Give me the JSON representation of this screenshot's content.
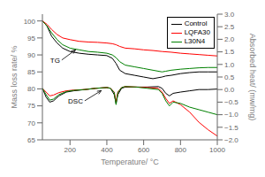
{
  "chart_data": {
    "type": "line",
    "title": "",
    "xlabel": "Temperature/ °C",
    "ylabel": "Mass loss rate/ %",
    "y2label": "Absorbed heat/ (mw/mg)",
    "xlim": [
      50,
      1000
    ],
    "xticks": [
      200,
      400,
      600,
      800,
      1000
    ],
    "ylim": [
      65,
      102
    ],
    "yticks": [
      65,
      70,
      75,
      80,
      85,
      90,
      95,
      100
    ],
    "y2lim": [
      -2.0,
      3.0
    ],
    "y2ticks": [
      {
        "value": -2.0,
        "label": "−2.0"
      },
      {
        "value": -1.5,
        "label": "−1.5"
      },
      {
        "value": -1.0,
        "label": "−1.0"
      },
      {
        "value": -0.5,
        "label": "−0.5"
      },
      {
        "value": 0.0,
        "label": "0.0"
      },
      {
        "value": 0.5,
        "label": "0.5"
      },
      {
        "value": 1.0,
        "label": "1.0"
      },
      {
        "value": 1.5,
        "label": "1.5"
      },
      {
        "value": 2.0,
        "label": "2.0"
      },
      {
        "value": 2.5,
        "label": "2.5"
      },
      {
        "value": 3.0,
        "label": "3.0"
      }
    ],
    "grid": false,
    "legend": "upper right",
    "series": [
      {
        "name": "Control",
        "color": "black",
        "line_style": "solid",
        "x": [
          50,
          75,
          100,
          130,
          160,
          200,
          250,
          300,
          350,
          400,
          430,
          450,
          470,
          500,
          550,
          600,
          650,
          700,
          720,
          750,
          800,
          850,
          900,
          950,
          1000
        ],
        "values": [
          100,
          98.5,
          95.5,
          93.5,
          92.0,
          91.0,
          90.5,
          90.2,
          90.0,
          89.8,
          89.0,
          87.5,
          85.5,
          84.5,
          84.0,
          83.5,
          83.0,
          83.5,
          83.8,
          84.0,
          84.5,
          84.8,
          85.0,
          85.0,
          85.0
        ]
      },
      {
        "name": "LQFA30",
        "color": "red",
        "line_style": "solid",
        "x": [
          50,
          75,
          100,
          130,
          160,
          200,
          250,
          300,
          350,
          400,
          430,
          450,
          470,
          500,
          550,
          600,
          650,
          700,
          750,
          800,
          850,
          900,
          950,
          1000
        ],
        "values": [
          100,
          99.0,
          97.5,
          96.0,
          95.0,
          94.5,
          94.0,
          93.8,
          93.7,
          93.5,
          93.3,
          93.0,
          92.5,
          92.0,
          91.8,
          91.5,
          91.3,
          91.0,
          90.8,
          90.5,
          90.3,
          90.1,
          89.9,
          89.7
        ]
      },
      {
        "name": "L30N4",
        "color": "green",
        "line_style": "solid",
        "x": [
          50,
          75,
          100,
          130,
          160,
          200,
          250,
          300,
          350,
          400,
          430,
          450,
          470,
          500,
          550,
          600,
          650,
          700,
          720,
          750,
          800,
          850,
          900,
          950,
          1000
        ],
        "values": [
          100,
          98.5,
          96.5,
          94.5,
          93.0,
          92.0,
          91.5,
          91.0,
          90.8,
          90.5,
          90.0,
          89.2,
          88.0,
          87.0,
          86.5,
          86.0,
          85.5,
          85.0,
          85.2,
          85.5,
          85.8,
          86.0,
          86.2,
          86.3,
          86.3
        ]
      },
      {
        "name": "Control",
        "color": "black",
        "line_style": "solid",
        "axis": "y2",
        "x": [
          50,
          70,
          90,
          110,
          140,
          180,
          220,
          280,
          340,
          400,
          420,
          440,
          450,
          460,
          480,
          500,
          560,
          620,
          680,
          700,
          720,
          740,
          760,
          800,
          850,
          900,
          950,
          1000
        ],
        "values": [
          0.05,
          -0.3,
          -0.5,
          -0.45,
          -0.25,
          -0.1,
          -0.05,
          0.0,
          0.05,
          0.08,
          0.05,
          -0.2,
          -0.55,
          -0.2,
          0.05,
          0.1,
          0.1,
          0.1,
          0.12,
          0.05,
          -0.15,
          -0.25,
          -0.15,
          -0.1,
          -0.05,
          0.0,
          0.0,
          0.02
        ]
      },
      {
        "name": "LQFA30",
        "color": "red",
        "line_style": "solid",
        "axis": "y2",
        "x": [
          50,
          70,
          90,
          110,
          140,
          180,
          220,
          280,
          340,
          400,
          420,
          440,
          450,
          460,
          480,
          500,
          560,
          620,
          680,
          700,
          720,
          740,
          760,
          800,
          850,
          900,
          950,
          1000
        ],
        "values": [
          0.05,
          -0.1,
          -0.25,
          -0.22,
          -0.12,
          -0.05,
          -0.02,
          0.0,
          0.05,
          0.08,
          0.05,
          -0.1,
          -0.48,
          -0.1,
          0.08,
          0.12,
          0.1,
          0.08,
          0.05,
          -0.1,
          -0.35,
          -0.55,
          -0.45,
          -0.6,
          -0.9,
          -1.3,
          -1.6,
          -1.85
        ]
      },
      {
        "name": "L30N4",
        "color": "green",
        "line_style": "solid",
        "axis": "y2",
        "x": [
          50,
          70,
          90,
          110,
          140,
          180,
          220,
          280,
          340,
          400,
          420,
          440,
          450,
          460,
          480,
          500,
          560,
          620,
          680,
          700,
          720,
          740,
          760,
          800,
          850,
          900,
          950,
          1000
        ],
        "values": [
          0.05,
          -0.2,
          -0.42,
          -0.38,
          -0.2,
          -0.08,
          -0.03,
          0.0,
          0.05,
          0.08,
          0.05,
          -0.12,
          -0.6,
          -0.12,
          0.08,
          0.12,
          0.1,
          0.05,
          0.0,
          -0.15,
          -0.45,
          -0.65,
          -0.5,
          -0.55,
          -0.7,
          -0.8,
          -0.9,
          -1.0
        ]
      }
    ],
    "annotations": [
      {
        "text": "TG",
        "x": 155,
        "y": 88.5,
        "arrow_x": 230,
        "arrow_y": 91.5
      },
      {
        "text": "DSC",
        "x": 280,
        "y": 76.5,
        "arrow_x": 370,
        "arrow_y": 79.5
      }
    ]
  }
}
